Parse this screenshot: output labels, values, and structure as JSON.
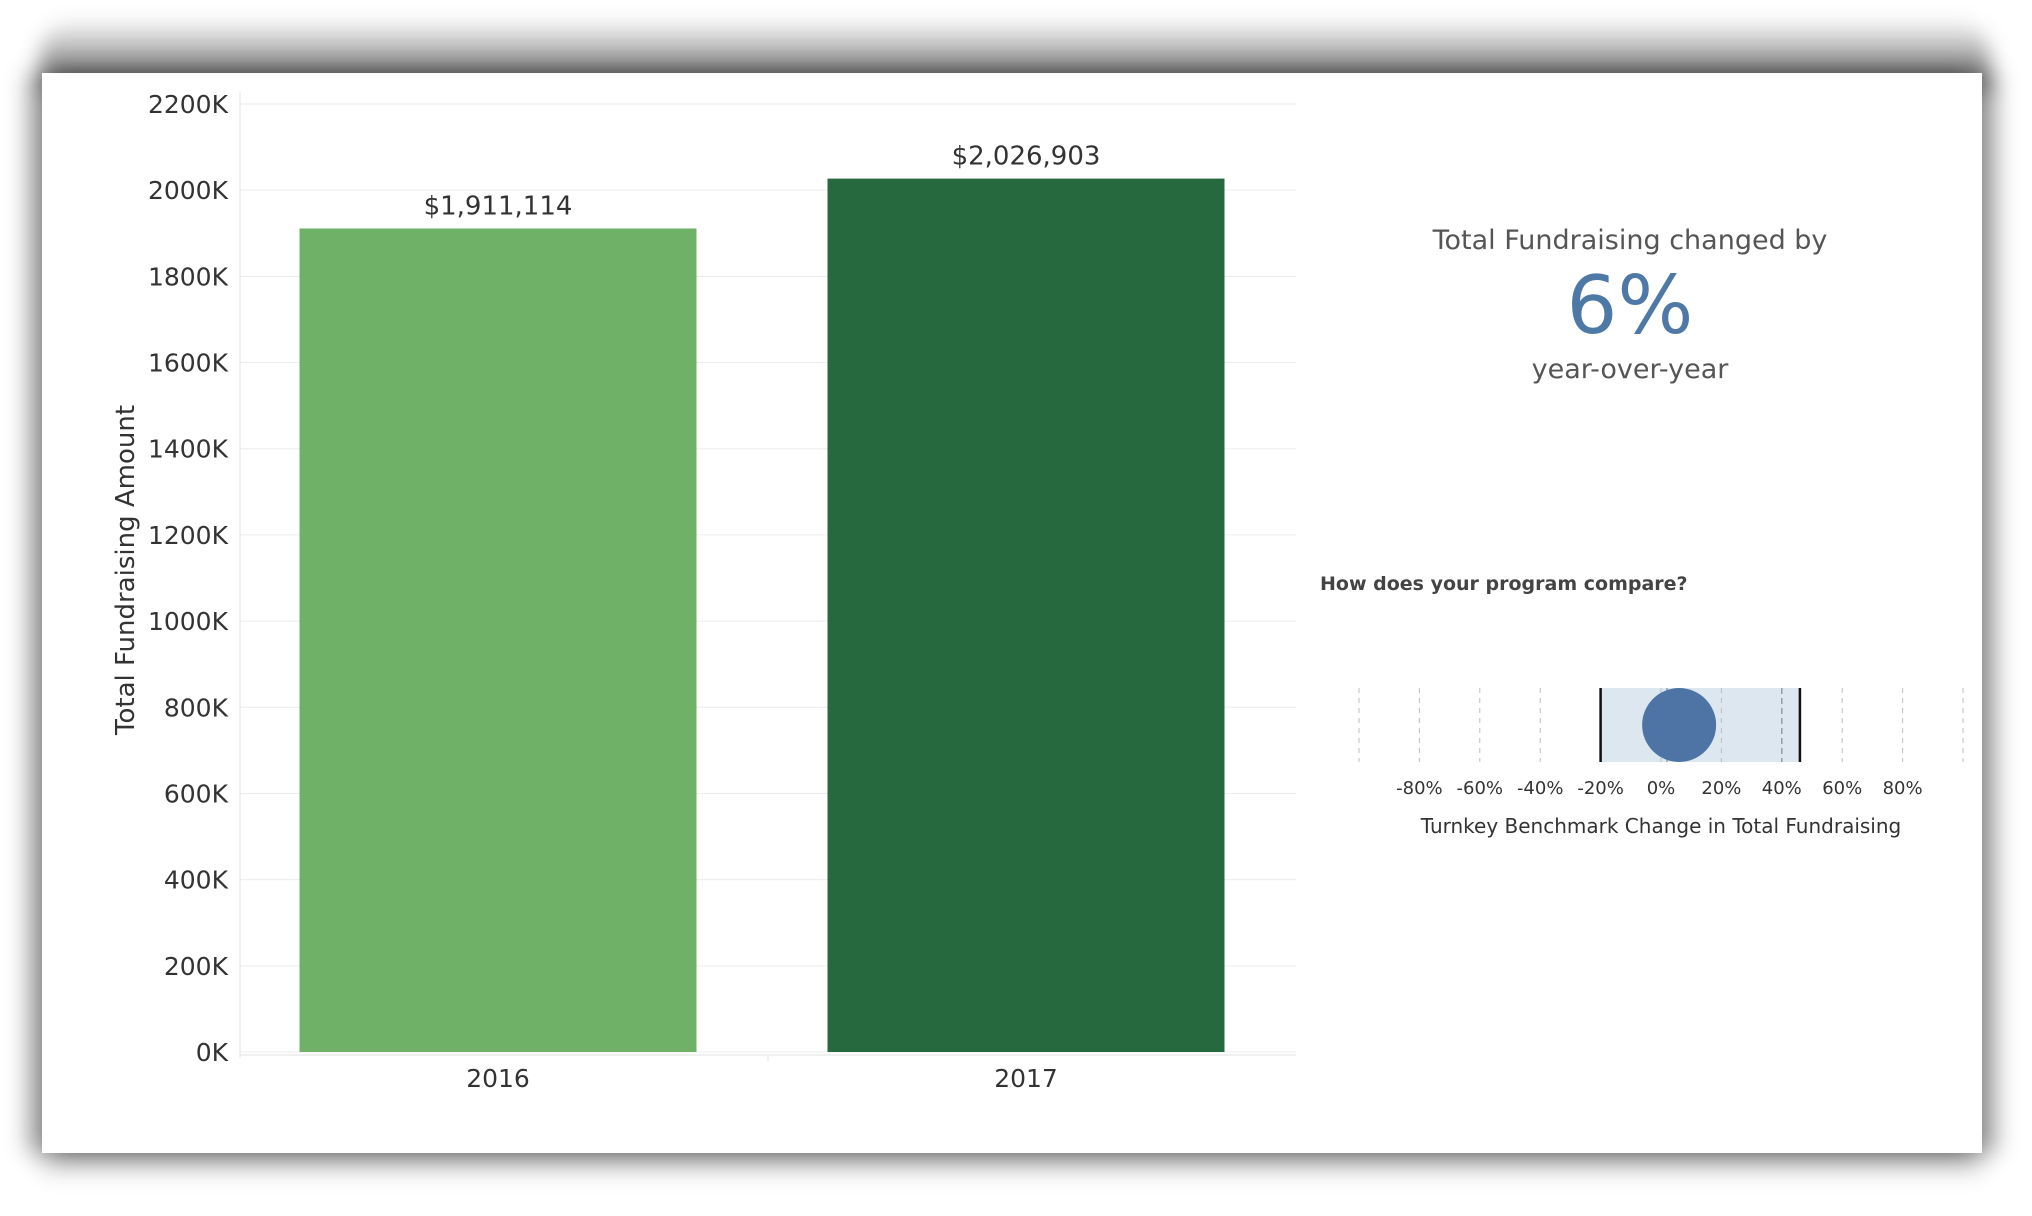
{
  "colors": {
    "bar_2016": "#6fb267",
    "bar_2017": "#27693f",
    "kpi_value": "#4e79a7",
    "bench_band": "#dce7ef",
    "bench_dot": "#4e74a6"
  },
  "chart_data": [
    {
      "type": "bar",
      "categories": [
        "2016",
        "2017"
      ],
      "values": [
        1911114,
        2026903
      ],
      "data_labels": [
        "$1,911,114",
        "$2,026,903"
      ],
      "ylabel": "Total Fundraising Amount",
      "ylim": [
        0,
        2200000
      ],
      "y_ticks": [
        0,
        200000,
        400000,
        600000,
        800000,
        1000000,
        1200000,
        1400000,
        1600000,
        1800000,
        2000000,
        2200000
      ],
      "y_tick_labels": [
        "0K",
        "200K",
        "400K",
        "600K",
        "800K",
        "1000K",
        "1200K",
        "1400K",
        "1600K",
        "1800K",
        "2000K",
        "2200K"
      ],
      "grid": true
    },
    {
      "type": "scatter",
      "title": "How does your program compare?",
      "xlabel": "Turnkey Benchmark Change in Total Fundraising",
      "x_ticks": [
        -80,
        -60,
        -40,
        -20,
        0,
        20,
        40,
        60,
        80
      ],
      "x_tick_labels": [
        "-80%",
        "-60%",
        "-40%",
        "-20%",
        "0%",
        "20%",
        "40%",
        "60%",
        "80%"
      ],
      "xlim": [
        -100,
        100
      ],
      "benchmark_band": [
        -20,
        46
      ],
      "inner_reference_lines": [
        2,
        40
      ],
      "value": 6
    }
  ],
  "kpi": {
    "lead": "Total Fundraising changed by",
    "value": "6%",
    "trail": "year-over-year"
  }
}
